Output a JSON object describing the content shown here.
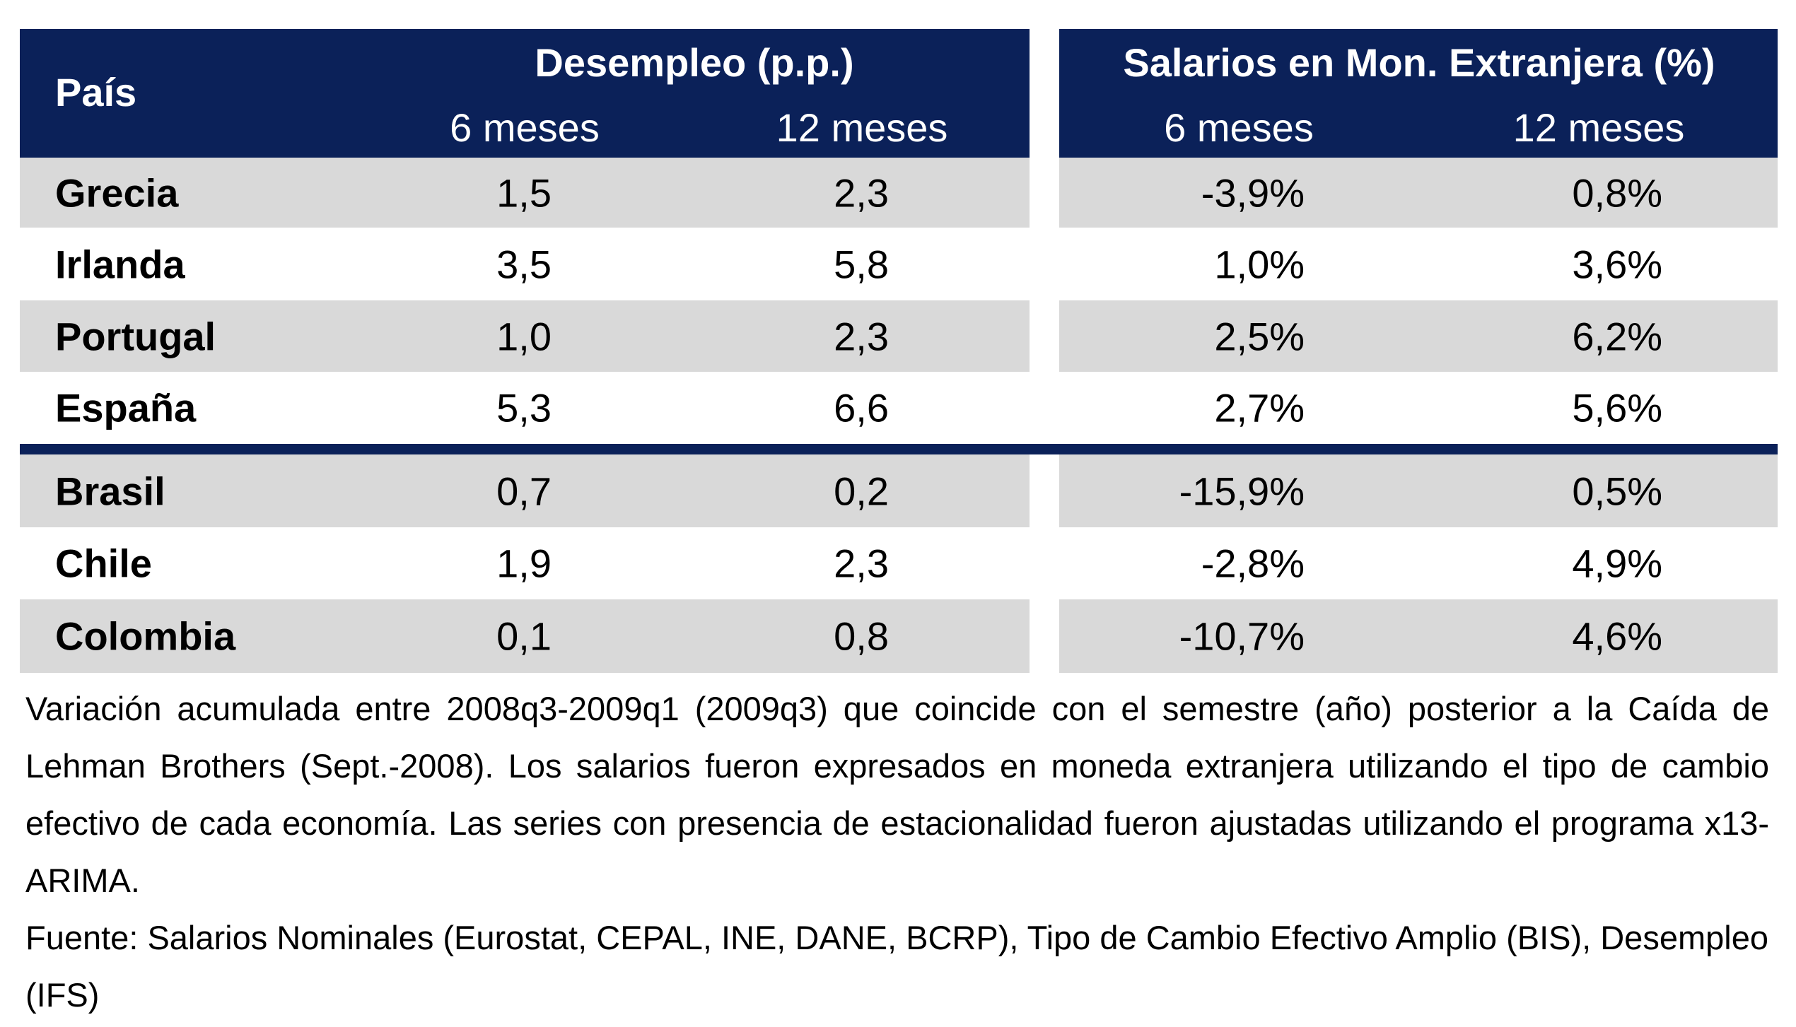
{
  "colors": {
    "header_bg": "#0b2159",
    "stripe_bg": "#d9d9d9"
  },
  "header": {
    "country": "País",
    "group1": "Desempleo (p.p.)",
    "group2": "Salarios en Mon. Extranjera (%)",
    "sub": [
      "6 meses",
      "12 meses",
      "6 meses",
      "12 meses"
    ]
  },
  "rows": [
    {
      "country": "Grecia",
      "u6": "1,5",
      "u12": "2,3",
      "s6": "-3,9%",
      "s12": "0,8%"
    },
    {
      "country": "Irlanda",
      "u6": "3,5",
      "u12": "5,8",
      "s6": "1,0%",
      "s12": "3,6%"
    },
    {
      "country": "Portugal",
      "u6": "1,0",
      "u12": "2,3",
      "s6": "2,5%",
      "s12": "6,2%"
    },
    {
      "country": "España",
      "u6": "5,3",
      "u12": "6,6",
      "s6": "2,7%",
      "s12": "5,6%"
    },
    {
      "country": "Brasil",
      "u6": "0,7",
      "u12": "0,2",
      "s6": "-15,9%",
      "s12": "0,5%"
    },
    {
      "country": "Chile",
      "u6": "1,9",
      "u12": "2,3",
      "s6": "-2,8%",
      "s12": "4,9%"
    },
    {
      "country": "Colombia",
      "u6": "0,1",
      "u12": "0,8",
      "s6": "-10,7%",
      "s12": "4,6%"
    }
  ],
  "footnote": {
    "note": "Variación acumulada entre 2008q3-2009q1 (2009q3) que coincide con el semestre (año) posterior a la Caída de Lehman Brothers (Sept.-2008). Los salarios fueron expresados en moneda extranjera utilizando el tipo de cambio efectivo de cada economía. Las series con presencia de estacionalidad fueron ajustadas utilizando  el programa x13-ARIMA.",
    "source": "Fuente: Salarios Nominales (Eurostat, CEPAL, INE,  DANE, BCRP), Tipo de Cambio Efectivo Amplio (BIS), Desempleo (IFS)"
  }
}
